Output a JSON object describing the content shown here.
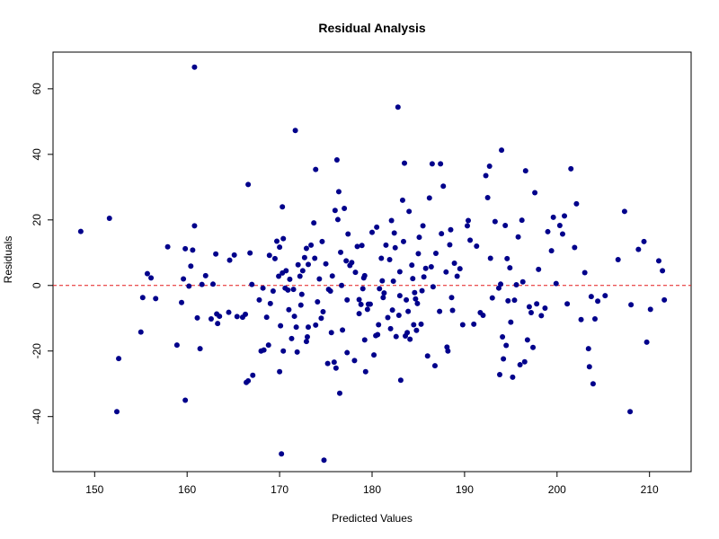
{
  "chart_data": {
    "type": "scatter",
    "title": "Residual Analysis",
    "xlabel": "Predicted Values",
    "ylabel": "Residuals",
    "xlim": [
      145.5,
      214.5
    ],
    "ylim": [
      -56.8,
      71.2
    ],
    "x_ticks": [
      150,
      160,
      170,
      180,
      190,
      200,
      210
    ],
    "y_ticks": [
      -40,
      -20,
      0,
      20,
      40,
      60
    ],
    "reference_line": {
      "y": 0,
      "color": "#e41a1c",
      "style": "dashed"
    },
    "point_color": "#00008b",
    "grid": false,
    "points": [
      [
        148.5,
        16.5
      ],
      [
        151.6,
        20.5
      ],
      [
        152.4,
        -38.5
      ],
      [
        152.6,
        -22.3
      ],
      [
        155.0,
        -14.2
      ],
      [
        155.2,
        -3.7
      ],
      [
        155.7,
        3.6
      ],
      [
        156.1,
        2.3
      ],
      [
        156.6,
        -4.0
      ],
      [
        157.9,
        11.8
      ],
      [
        158.9,
        -18.2
      ],
      [
        159.4,
        -5.2
      ],
      [
        159.6,
        2.0
      ],
      [
        159.8,
        -35.0
      ],
      [
        159.8,
        11.2
      ],
      [
        160.2,
        -0.2
      ],
      [
        160.4,
        5.9
      ],
      [
        160.6,
        10.8
      ],
      [
        160.8,
        18.2
      ],
      [
        160.8,
        66.6
      ],
      [
        161.1,
        -9.9
      ],
      [
        161.4,
        -19.3
      ],
      [
        161.6,
        0.3
      ],
      [
        162.0,
        3.0
      ],
      [
        162.6,
        -10.2
      ],
      [
        162.8,
        0.4
      ],
      [
        163.1,
        9.6
      ],
      [
        163.2,
        -8.7
      ],
      [
        163.3,
        -11.6
      ],
      [
        163.5,
        -9.4
      ],
      [
        164.5,
        -8.2
      ],
      [
        164.6,
        7.7
      ],
      [
        165.1,
        9.3
      ],
      [
        165.4,
        -9.5
      ],
      [
        166.0,
        -9.7
      ],
      [
        166.3,
        -8.8
      ],
      [
        166.4,
        -29.6
      ],
      [
        166.6,
        -29.1
      ],
      [
        166.6,
        30.8
      ],
      [
        166.8,
        9.9
      ],
      [
        167.0,
        0.3
      ],
      [
        167.1,
        -27.4
      ],
      [
        167.8,
        -4.4
      ],
      [
        168.0,
        -20.0
      ],
      [
        168.2,
        -0.8
      ],
      [
        168.3,
        -19.7
      ],
      [
        168.6,
        -9.7
      ],
      [
        168.8,
        -18.2
      ],
      [
        168.9,
        9.2
      ],
      [
        169.0,
        -5.5
      ],
      [
        169.3,
        -1.7
      ],
      [
        169.5,
        8.2
      ],
      [
        169.7,
        13.5
      ],
      [
        169.9,
        2.8
      ],
      [
        170.0,
        11.7
      ],
      [
        170.0,
        -26.3
      ],
      [
        170.1,
        -12.3
      ],
      [
        170.2,
        -51.4
      ],
      [
        170.3,
        24.0
      ],
      [
        170.3,
        3.8
      ],
      [
        170.4,
        -20.0
      ],
      [
        170.4,
        14.3
      ],
      [
        170.6,
        -0.8
      ],
      [
        170.7,
        4.5
      ],
      [
        170.9,
        -1.4
      ],
      [
        171.0,
        -7.4
      ],
      [
        171.1,
        1.9
      ],
      [
        171.3,
        -16.2
      ],
      [
        171.5,
        -1.2
      ],
      [
        171.6,
        -9.4
      ],
      [
        171.7,
        47.3
      ],
      [
        171.8,
        -12.7
      ],
      [
        171.9,
        -20.3
      ],
      [
        172.0,
        6.3
      ],
      [
        172.2,
        2.8
      ],
      [
        172.3,
        -6.0
      ],
      [
        172.4,
        -2.7
      ],
      [
        172.5,
        4.5
      ],
      [
        172.7,
        8.5
      ],
      [
        172.9,
        -17.1
      ],
      [
        172.9,
        11.3
      ],
      [
        173.0,
        -15.7
      ],
      [
        173.1,
        -12.7
      ],
      [
        173.1,
        6.4
      ],
      [
        173.4,
        12.3
      ],
      [
        173.7,
        19.1
      ],
      [
        173.8,
        8.3
      ],
      [
        173.9,
        35.4
      ],
      [
        173.9,
        -12.1
      ],
      [
        174.1,
        -5.0
      ],
      [
        174.3,
        2.0
      ],
      [
        174.5,
        -10.0
      ],
      [
        174.6,
        13.4
      ],
      [
        174.7,
        -8.0
      ],
      [
        174.8,
        -53.3
      ],
      [
        175.0,
        6.6
      ],
      [
        175.2,
        -23.8
      ],
      [
        175.3,
        -1.2
      ],
      [
        175.5,
        -1.7
      ],
      [
        175.6,
        -14.4
      ],
      [
        175.7,
        2.9
      ],
      [
        175.9,
        -23.4
      ],
      [
        176.0,
        22.9
      ],
      [
        176.1,
        -25.2
      ],
      [
        176.2,
        38.3
      ],
      [
        176.3,
        20.1
      ],
      [
        176.4,
        28.6
      ],
      [
        176.5,
        -32.9
      ],
      [
        176.6,
        10.1
      ],
      [
        176.7,
        0.0
      ],
      [
        176.8,
        -13.6
      ],
      [
        177.0,
        23.5
      ],
      [
        177.2,
        7.5
      ],
      [
        177.3,
        -4.4
      ],
      [
        177.3,
        -20.5
      ],
      [
        177.4,
        15.7
      ],
      [
        177.6,
        6.1
      ],
      [
        177.8,
        7.0
      ],
      [
        178.1,
        -22.9
      ],
      [
        178.2,
        4.0
      ],
      [
        178.4,
        11.9
      ],
      [
        178.6,
        -8.6
      ],
      [
        178.6,
        -4.3
      ],
      [
        178.8,
        -5.8
      ],
      [
        178.9,
        12.2
      ],
      [
        179.0,
        -1.0
      ],
      [
        179.1,
        2.3
      ],
      [
        179.2,
        -16.6
      ],
      [
        179.2,
        3.0
      ],
      [
        179.3,
        -26.3
      ],
      [
        179.5,
        -7.3
      ],
      [
        179.6,
        -5.7
      ],
      [
        179.8,
        -5.7
      ],
      [
        180.0,
        16.2
      ],
      [
        180.2,
        -21.2
      ],
      [
        180.4,
        -15.3
      ],
      [
        180.5,
        17.8
      ],
      [
        180.6,
        -15.0
      ],
      [
        180.7,
        -12.0
      ],
      [
        180.8,
        -1.0
      ],
      [
        181.0,
        8.3
      ],
      [
        181.1,
        1.4
      ],
      [
        181.2,
        -3.7
      ],
      [
        181.3,
        -2.3
      ],
      [
        181.5,
        12.3
      ],
      [
        181.7,
        -9.8
      ],
      [
        181.9,
        7.9
      ],
      [
        182.0,
        -13.2
      ],
      [
        182.1,
        19.8
      ],
      [
        182.2,
        -7.5
      ],
      [
        182.3,
        1.3
      ],
      [
        182.4,
        16.0
      ],
      [
        182.5,
        11.5
      ],
      [
        182.6,
        -15.6
      ],
      [
        182.8,
        54.4
      ],
      [
        182.9,
        -9.1
      ],
      [
        183.0,
        4.2
      ],
      [
        183.0,
        -3.1
      ],
      [
        183.1,
        -28.9
      ],
      [
        183.3,
        26.0
      ],
      [
        183.4,
        13.4
      ],
      [
        183.5,
        37.3
      ],
      [
        183.6,
        -15.4
      ],
      [
        183.7,
        -4.4
      ],
      [
        183.8,
        -14.4
      ],
      [
        183.9,
        -7.9
      ],
      [
        184.0,
        22.6
      ],
      [
        184.1,
        -16.4
      ],
      [
        184.3,
        6.2
      ],
      [
        184.4,
        2.1
      ],
      [
        184.5,
        -12.0
      ],
      [
        184.6,
        -2.2
      ],
      [
        184.7,
        -4.1
      ],
      [
        184.8,
        -13.7
      ],
      [
        184.9,
        -5.5
      ],
      [
        185.0,
        9.7
      ],
      [
        185.1,
        14.7
      ],
      [
        185.3,
        -11.8
      ],
      [
        185.4,
        -1.6
      ],
      [
        185.5,
        18.2
      ],
      [
        185.6,
        2.6
      ],
      [
        185.8,
        5.2
      ],
      [
        186.0,
        -21.5
      ],
      [
        186.2,
        26.7
      ],
      [
        186.4,
        5.7
      ],
      [
        186.5,
        37.1
      ],
      [
        186.6,
        -0.4
      ],
      [
        186.8,
        -24.5
      ],
      [
        186.9,
        9.8
      ],
      [
        187.3,
        -7.9
      ],
      [
        187.4,
        37.1
      ],
      [
        187.5,
        15.8
      ],
      [
        187.7,
        30.3
      ],
      [
        188.0,
        4.1
      ],
      [
        188.1,
        -18.8
      ],
      [
        188.2,
        -20.0
      ],
      [
        188.4,
        12.4
      ],
      [
        188.5,
        17.0
      ],
      [
        188.6,
        -3.7
      ],
      [
        188.7,
        -7.6
      ],
      [
        188.9,
        6.8
      ],
      [
        189.2,
        2.8
      ],
      [
        189.5,
        5.1
      ],
      [
        189.8,
        -12.0
      ],
      [
        190.3,
        18.2
      ],
      [
        190.4,
        19.8
      ],
      [
        190.6,
        13.8
      ],
      [
        191.0,
        -11.8
      ],
      [
        191.3,
        12.0
      ],
      [
        191.7,
        -8.3
      ],
      [
        192.0,
        -9.1
      ],
      [
        192.3,
        33.5
      ],
      [
        192.5,
        26.8
      ],
      [
        192.7,
        36.4
      ],
      [
        192.8,
        8.3
      ],
      [
        193.0,
        -3.8
      ],
      [
        193.3,
        19.5
      ],
      [
        193.7,
        -0.8
      ],
      [
        193.8,
        -27.2
      ],
      [
        193.9,
        0.4
      ],
      [
        194.0,
        41.3
      ],
      [
        194.1,
        -15.7
      ],
      [
        194.2,
        -22.4
      ],
      [
        194.4,
        18.3
      ],
      [
        194.5,
        -18.3
      ],
      [
        194.6,
        8.2
      ],
      [
        194.7,
        -4.7
      ],
      [
        194.9,
        5.4
      ],
      [
        195.0,
        -11.2
      ],
      [
        195.2,
        -28.0
      ],
      [
        195.4,
        -4.5
      ],
      [
        195.6,
        0.2
      ],
      [
        195.8,
        14.8
      ],
      [
        196.0,
        -24.2
      ],
      [
        196.2,
        19.9
      ],
      [
        196.3,
        1.1
      ],
      [
        196.5,
        -23.3
      ],
      [
        196.6,
        35.0
      ],
      [
        196.8,
        -16.6
      ],
      [
        197.0,
        -6.5
      ],
      [
        197.2,
        -8.3
      ],
      [
        197.4,
        -18.9
      ],
      [
        197.6,
        28.3
      ],
      [
        197.8,
        -5.6
      ],
      [
        198.0,
        4.9
      ],
      [
        198.3,
        -9.2
      ],
      [
        198.7,
        -6.9
      ],
      [
        199.0,
        16.4
      ],
      [
        199.4,
        10.6
      ],
      [
        199.6,
        20.8
      ],
      [
        199.9,
        0.6
      ],
      [
        200.3,
        18.3
      ],
      [
        200.6,
        15.7
      ],
      [
        200.8,
        21.2
      ],
      [
        201.1,
        -5.6
      ],
      [
        201.5,
        35.6
      ],
      [
        201.9,
        11.6
      ],
      [
        202.1,
        24.9
      ],
      [
        202.6,
        -10.4
      ],
      [
        203.0,
        3.9
      ],
      [
        203.4,
        -19.3
      ],
      [
        203.5,
        -24.8
      ],
      [
        203.7,
        -3.4
      ],
      [
        203.9,
        -30.0
      ],
      [
        204.1,
        -10.2
      ],
      [
        204.4,
        -4.8
      ],
      [
        205.2,
        -3.1
      ],
      [
        206.6,
        7.9
      ],
      [
        207.3,
        22.6
      ],
      [
        207.9,
        -38.5
      ],
      [
        208.0,
        -5.9
      ],
      [
        208.8,
        11.0
      ],
      [
        209.4,
        13.4
      ],
      [
        209.7,
        -17.3
      ],
      [
        210.1,
        -7.3
      ],
      [
        211.0,
        7.5
      ],
      [
        211.4,
        4.5
      ],
      [
        211.6,
        -4.4
      ]
    ]
  }
}
